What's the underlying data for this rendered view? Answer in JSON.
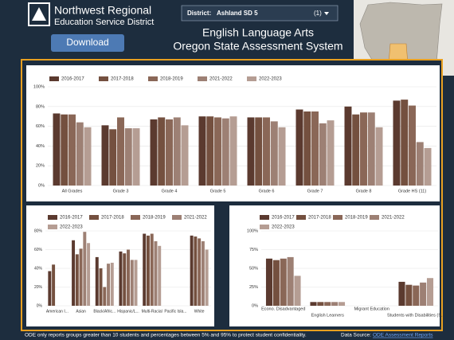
{
  "header": {
    "org_line1": "Northwest Regional",
    "org_line2": "Education Service District",
    "download": "Download",
    "district_label": "District:",
    "district": "Ashland SD 5",
    "district_count": "(1)",
    "title": "English Language Arts",
    "subtitle": "Oregon State Assessment System"
  },
  "footer": {
    "note": "ODE only reports groups greater than 10 students and percentages between 5% and 95% to protect student confidentiality.",
    "source_label": "Data Source:",
    "source_link": "ODE Assessment Reports"
  },
  "chart_data": [
    {
      "type": "bar",
      "categories": [
        "All Grades",
        "Grade 3",
        "Grade 4",
        "Grade 5",
        "Grade 6",
        "Grade 7",
        "Grade 8",
        "Grade HS (11)"
      ],
      "series": [
        {
          "name": "2016-2017",
          "color": "#5b3a2f",
          "values": [
            73,
            61,
            67,
            70,
            69,
            77,
            80,
            86
          ]
        },
        {
          "name": "2017-2018",
          "color": "#74503f",
          "values": [
            72,
            57,
            69,
            70,
            69,
            75,
            72,
            87
          ]
        },
        {
          "name": "2018-2019",
          "color": "#8a6757",
          "values": [
            72,
            69,
            67,
            69,
            69,
            75,
            74,
            81
          ]
        },
        {
          "name": "2021-2022",
          "color": "#9d8074",
          "values": [
            64,
            58,
            69,
            68,
            65,
            63,
            74,
            44
          ]
        },
        {
          "name": "2022-2023",
          "color": "#b59d93",
          "values": [
            59,
            58,
            61,
            70,
            59,
            66,
            59,
            38
          ]
        }
      ],
      "ylim": [
        0,
        100
      ],
      "yticks": [
        {
          "value": 0,
          "label": "0%"
        },
        {
          "value": 20,
          "label": "20%"
        },
        {
          "value": 40,
          "label": "40%"
        },
        {
          "value": 60,
          "label": "60%"
        },
        {
          "value": 80,
          "label": "80%"
        },
        {
          "value": 100,
          "label": "100%"
        }
      ],
      "grid": true
    },
    {
      "type": "bar",
      "categories": [
        "American I...",
        "Asian",
        "Black/Afric...",
        "Hispanic/L...",
        "Multi-Racial",
        "Pacific Isla...",
        "White"
      ],
      "series": [
        {
          "name": "2016-2017",
          "color": "#5b3a2f",
          "values": [
            37,
            70,
            52,
            58,
            77,
            null,
            75
          ]
        },
        {
          "name": "2017-2018",
          "color": "#74503f",
          "values": [
            44,
            55,
            40,
            56,
            75,
            null,
            74
          ]
        },
        {
          "name": "2018-2019",
          "color": "#8a6757",
          "values": [
            null,
            61,
            20,
            60,
            77,
            null,
            72
          ]
        },
        {
          "name": "2021-2022",
          "color": "#9d8074",
          "values": [
            null,
            79,
            45,
            49,
            69,
            null,
            69
          ]
        },
        {
          "name": "2022-2023",
          "color": "#b59d93",
          "values": [
            null,
            67,
            46,
            49,
            64,
            null,
            60
          ]
        }
      ],
      "ylim": [
        0,
        80
      ],
      "yticks": [
        {
          "value": 0,
          "label": "0%"
        },
        {
          "value": 20,
          "label": "20%"
        },
        {
          "value": 40,
          "label": "40%"
        },
        {
          "value": 60,
          "label": "60%"
        },
        {
          "value": 80,
          "label": "80%"
        }
      ],
      "grid": true
    },
    {
      "type": "bar",
      "categories": [
        "Econo. Disadvantaged",
        "English Learners",
        "Migrant Education",
        "Students with Disabilities (S..."
      ],
      "series": [
        {
          "name": "2016-2017",
          "color": "#5b3a2f",
          "values": [
            63,
            5,
            null,
            32
          ]
        },
        {
          "name": "2017-2018",
          "color": "#74503f",
          "values": [
            61,
            5,
            null,
            28
          ]
        },
        {
          "name": "2018-2019",
          "color": "#8a6757",
          "values": [
            63,
            5,
            null,
            27
          ]
        },
        {
          "name": "2021-2022",
          "color": "#9d8074",
          "values": [
            65,
            5,
            null,
            31
          ]
        },
        {
          "name": "2022-2023",
          "color": "#b59d93",
          "values": [
            40,
            5,
            null,
            37
          ]
        }
      ],
      "ylim": [
        0,
        100
      ],
      "yticks": [
        {
          "value": 0,
          "label": "0%"
        },
        {
          "value": 25,
          "label": "25%"
        },
        {
          "value": 50,
          "label": "50%"
        },
        {
          "value": 75,
          "label": "75%"
        },
        {
          "value": 100,
          "label": "100%"
        }
      ],
      "grid": true
    }
  ]
}
